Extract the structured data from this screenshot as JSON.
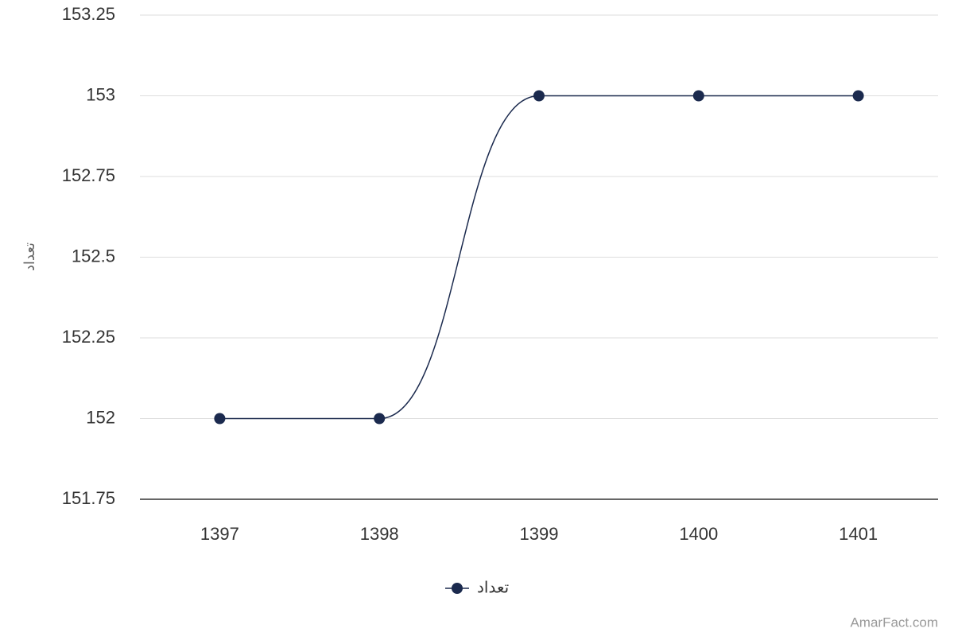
{
  "chart_data": {
    "type": "line",
    "y_label": "تعداد",
    "categories": [
      "1397",
      "1398",
      "1399",
      "1400",
      "1401"
    ],
    "series": [
      {
        "name": "تعداد",
        "color": "#1b2a4e",
        "values": [
          152,
          152,
          153,
          153,
          153
        ]
      }
    ],
    "ylim": [
      151.75,
      153.25
    ],
    "yticks": [
      151.75,
      152,
      152.25,
      152.5,
      152.75,
      153,
      153.25
    ],
    "grid": true,
    "legend": "bottom",
    "credit": "AmarFact.com"
  }
}
